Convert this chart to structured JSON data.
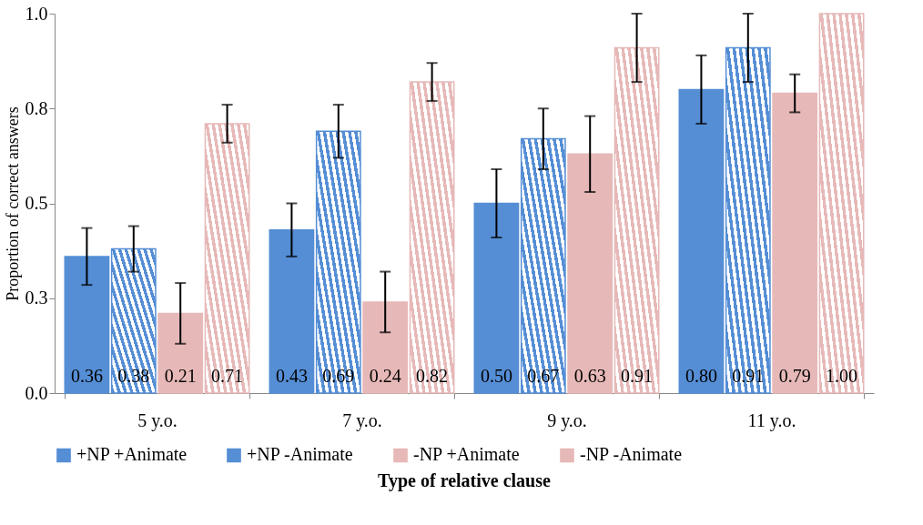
{
  "chart_data": {
    "type": "bar",
    "xlabel": "Type of relative clause",
    "ylabel": "Proportion of correct answers",
    "categories": [
      "5 y.o.",
      "7 y.o.",
      "9 y.o.",
      "11 y.o."
    ],
    "series": [
      {
        "name": "+NP +Animate",
        "color": "#558ed5",
        "values": [
          0.36,
          0.43,
          0.5,
          0.8
        ],
        "value_labels": [
          "0.36",
          "0.43",
          "0.50",
          "0.80"
        ],
        "errors": [
          0.075,
          0.07,
          0.09,
          0.09
        ]
      },
      {
        "name": "+NP -Animate",
        "color": "#558ed5",
        "values": [
          0.38,
          0.69,
          0.67,
          0.91
        ],
        "value_labels": [
          "0.38",
          "0.69",
          "0.67",
          "0.91"
        ],
        "errors": [
          0.06,
          0.07,
          0.08,
          0.09
        ]
      },
      {
        "name": "-NP +Animate",
        "color": "#e6b9b8",
        "values": [
          0.21,
          0.24,
          0.63,
          0.79
        ],
        "value_labels": [
          "0.21",
          "0.24",
          "0.63",
          "0.79"
        ],
        "errors": [
          0.08,
          0.08,
          0.1,
          0.05
        ]
      },
      {
        "name": "-NP -Animate",
        "color": "#e6b9b8",
        "values": [
          0.71,
          0.82,
          0.91,
          1.0
        ],
        "value_labels": [
          "0.71",
          "0.82",
          "0.91",
          "1.00"
        ],
        "errors": [
          0.05,
          0.05,
          0.09,
          null
        ]
      }
    ],
    "ylim": [
      0,
      1
    ],
    "yticks": [
      {
        "value": 0,
        "label": "0.0"
      },
      {
        "value": 0.25,
        "label": "0.3"
      },
      0.5,
      {
        "value": 0.75,
        "label": "0.8"
      },
      {
        "value": 1,
        "label": "1.0"
      }
    ],
    "grid": false,
    "legend": "bottom"
  }
}
